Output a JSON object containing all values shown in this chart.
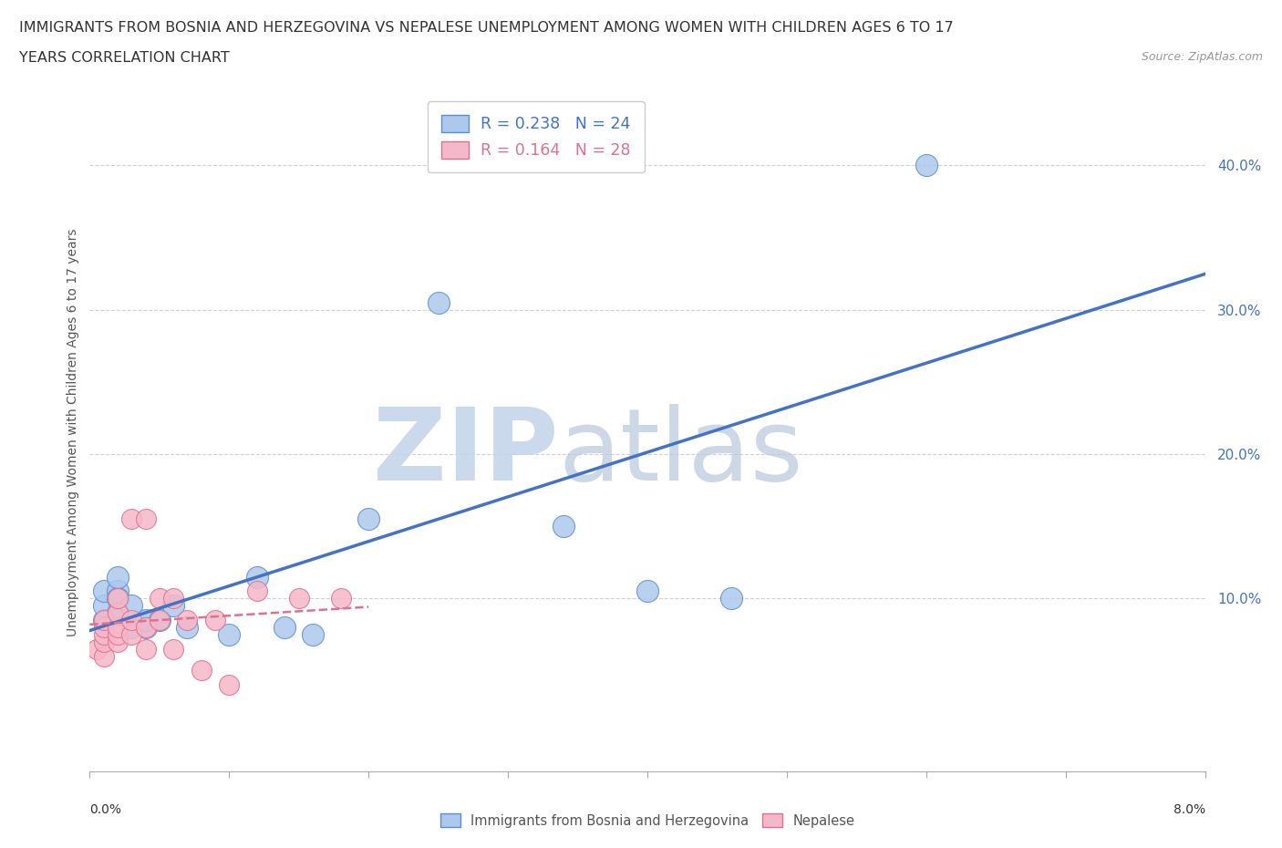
{
  "title_line1": "IMMIGRANTS FROM BOSNIA AND HERZEGOVINA VS NEPALESE UNEMPLOYMENT AMONG WOMEN WITH CHILDREN AGES 6 TO 17",
  "title_line2": "YEARS CORRELATION CHART",
  "source": "Source: ZipAtlas.com",
  "ylabel": "Unemployment Among Women with Children Ages 6 to 17 years",
  "legend_blue_R": "0.238",
  "legend_blue_N": "24",
  "legend_pink_R": "0.164",
  "legend_pink_N": "28",
  "legend_blue_label": "Immigrants from Bosnia and Herzegovina",
  "legend_pink_label": "Nepalese",
  "blue_color": "#adc8ed",
  "pink_color": "#f5b8c8",
  "blue_edge": "#5b8fd4",
  "pink_edge": "#e07090",
  "trend_blue": "#4472c4",
  "trend_pink": "#e07090",
  "watermark_zip_color": "#c8d8ee",
  "watermark_atlas_color": "#c0cce0",
  "blue_x": [
    0.001,
    0.001,
    0.001,
    0.002,
    0.002,
    0.002,
    0.002,
    0.003,
    0.003,
    0.004,
    0.004,
    0.005,
    0.006,
    0.007,
    0.01,
    0.012,
    0.014,
    0.016,
    0.02,
    0.025,
    0.034,
    0.04,
    0.046,
    0.06
  ],
  "blue_y": [
    0.085,
    0.095,
    0.105,
    0.09,
    0.105,
    0.1,
    0.115,
    0.095,
    0.08,
    0.08,
    0.085,
    0.085,
    0.095,
    0.08,
    0.075,
    0.115,
    0.08,
    0.075,
    0.155,
    0.305,
    0.15,
    0.105,
    0.1,
    0.4
  ],
  "pink_x": [
    0.0005,
    0.001,
    0.001,
    0.001,
    0.001,
    0.001,
    0.002,
    0.002,
    0.002,
    0.002,
    0.002,
    0.003,
    0.003,
    0.003,
    0.004,
    0.004,
    0.004,
    0.005,
    0.005,
    0.006,
    0.006,
    0.007,
    0.008,
    0.009,
    0.01,
    0.012,
    0.015,
    0.018
  ],
  "pink_y": [
    0.065,
    0.06,
    0.07,
    0.075,
    0.08,
    0.085,
    0.07,
    0.075,
    0.08,
    0.09,
    0.1,
    0.075,
    0.085,
    0.155,
    0.065,
    0.08,
    0.155,
    0.085,
    0.1,
    0.065,
    0.1,
    0.085,
    0.05,
    0.085,
    0.04,
    0.105,
    0.1,
    0.1
  ],
  "xlim": [
    0.0,
    0.08
  ],
  "ylim": [
    -0.02,
    0.45
  ],
  "yticks": [
    0.1,
    0.2,
    0.3,
    0.4
  ],
  "ytick_labels": [
    "10.0%",
    "20.0%",
    "30.0%",
    "40.0%"
  ],
  "grid_color": "#cccccc",
  "background_color": "#ffffff"
}
